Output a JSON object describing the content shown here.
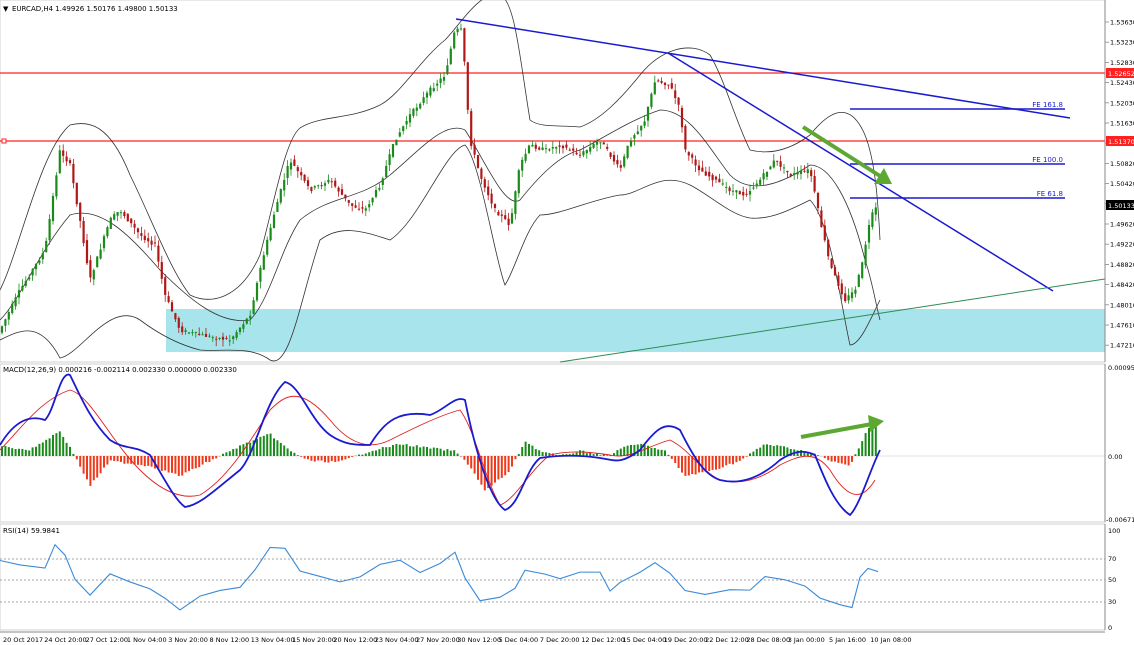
{
  "main_panel": {
    "title": "EURCAD,H4  1.49926 1.50176 1.49800 1.50133",
    "price_ticks": [
      "1.53630",
      "1.53230",
      "1.52830",
      "1.52430",
      "1.52030",
      "1.51630",
      "1.51230",
      "1.50820",
      "1.50420",
      "1.50000",
      "1.49620",
      "1.49220",
      "1.48820",
      "1.48420",
      "1.48010",
      "1.47610",
      "1.47210"
    ],
    "current_price": "1.50133",
    "hline_labels": [
      "1.52652",
      "1.51370"
    ],
    "fe_labels": [
      "FE 161.8",
      "FE 100.0",
      "FE 61.8"
    ]
  },
  "macd_panel": {
    "title": "MACD(12,26,9) 0.000216 -0.002114 0.002330 0.000000 0.002330",
    "ticks": [
      "0.000957",
      "0.00",
      "-0.006713"
    ]
  },
  "rsi_panel": {
    "title": "RSI(14) 59.9841",
    "ticks": [
      "100",
      "70",
      "50",
      "30",
      "0"
    ]
  },
  "time_axis": [
    "20 Oct 2017",
    "24 Oct 20:00",
    "27 Oct 12:00",
    "1 Nov 04:00",
    "3 Nov 20:00",
    "8 Nov 12:00",
    "13 Nov 04:00",
    "15 Nov 20:00",
    "20 Nov 12:00",
    "23 Nov 04:00",
    "27 Nov 20:00",
    "30 Nov 12:00",
    "5 Dec 04:00",
    "7 Dec 20:00",
    "12 Dec 12:00",
    "15 Dec 04:00",
    "19 Dec 20:00",
    "22 Dec 12:00",
    "28 Dec 08:00",
    "3 Jan 00:00",
    "5 Jan 16:00",
    "10 Jan 08:00"
  ],
  "colors": {
    "up_candle": "#1a8a1a",
    "down_candle": "#b01818",
    "support_zone": "#a8e4ec",
    "trendline": "#1a1ad0",
    "horizontal_line": "#ff2020",
    "green_arrow": "#5ca832",
    "macd_line": "#1a1ad0",
    "signal_line": "#e02020",
    "rsi_line": "#3a8ad8"
  },
  "chart_data": {
    "type": "candlestick",
    "price_range": [
      1.4721,
      1.5403
    ],
    "support_zone": [
      1.473,
      1.482
    ],
    "fe_levels": [
      1.5195,
      1.509,
      1.5026
    ],
    "macd_range": [
      -0.006713,
      0.000957
    ],
    "rsi_levels": [
      70,
      50,
      30
    ]
  }
}
